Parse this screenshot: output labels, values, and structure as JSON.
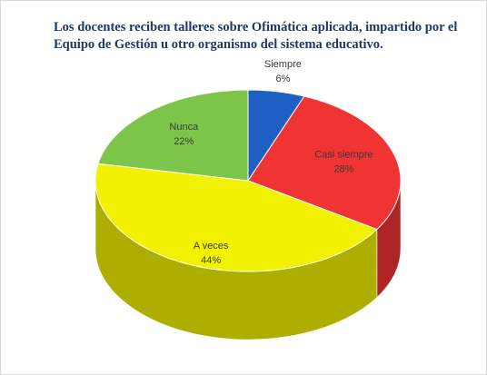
{
  "chart_data": {
    "type": "pie3d",
    "title": "Los docentes reciben talleres sobre Ofimática aplicada, impartido por el Equipo de Gestión u otro organismo del sistema educativo.",
    "categories": [
      "Siempre",
      "Casi siempre",
      "A veces",
      "Nunca"
    ],
    "values": [
      6,
      28,
      44,
      22
    ],
    "value_labels": [
      "6%",
      "28%",
      "44%",
      "22%"
    ],
    "colors": [
      "#1f5fc4",
      "#f03434",
      "#f2f200",
      "#7dc54a"
    ]
  }
}
